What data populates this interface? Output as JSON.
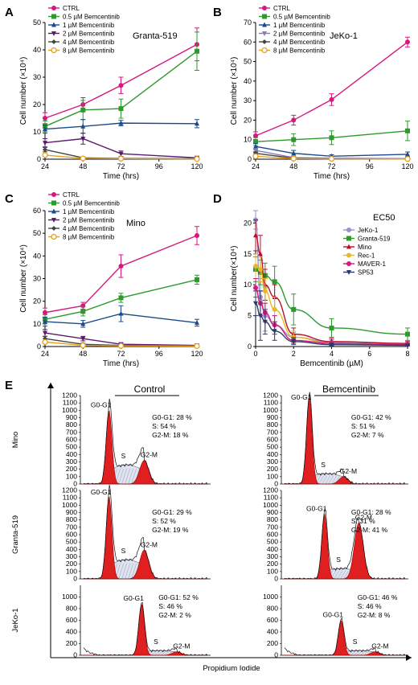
{
  "chart_data": [
    {
      "id": "A",
      "panel": "A",
      "type": "line",
      "annotation": "Granta-519",
      "xlabel": "Time (hrs)",
      "ylabel": "Cell number (×10⁴)",
      "x_ticks": [
        24,
        48,
        72,
        96,
        120
      ],
      "y_ticks": [
        0,
        10,
        20,
        30,
        40,
        50
      ],
      "xlim": [
        24,
        120
      ],
      "ylim": [
        0,
        50
      ],
      "legend_position": "top-left",
      "x": [
        24,
        48,
        72,
        120
      ],
      "series": [
        {
          "name": "CTRL",
          "color": "#d6187e",
          "marker": "circle",
          "y": [
            15,
            20,
            27,
            42
          ],
          "err": [
            2,
            2.5,
            3,
            6
          ]
        },
        {
          "name": "0.5 µM Bemcentinib",
          "color": "#2e9a2e",
          "marker": "square",
          "y": [
            12,
            18,
            18.5,
            39.5
          ],
          "err": [
            2,
            3.5,
            3.5,
            7
          ]
        },
        {
          "name": "1 µM Bemcentinib",
          "color": "#1a4a8a",
          "marker": "triangle",
          "y": [
            11,
            12,
            13.2,
            13
          ],
          "err": [
            1.5,
            2.5,
            1,
            1.5
          ]
        },
        {
          "name": "2 µM Bemcentinib",
          "color": "#5a1a6e",
          "marker": "triangle-down",
          "y": [
            6,
            7.5,
            2,
            0.5
          ],
          "err": [
            1.5,
            2,
            1,
            0.3
          ]
        },
        {
          "name": "4 µM Bemcentinib",
          "color": "#444444",
          "marker": "diamond",
          "y": [
            3.5,
            0.5,
            0.3,
            0.2
          ],
          "err": [
            0.8,
            0.3,
            0.2,
            0.1
          ]
        },
        {
          "name": "8 µM Bemcentinib",
          "color": "#e8a020",
          "marker": "circle-open",
          "y": [
            1.5,
            0.3,
            0.2,
            0.1
          ],
          "err": [
            0.5,
            0.2,
            0.1,
            0.1
          ]
        }
      ]
    },
    {
      "id": "B",
      "panel": "B",
      "type": "line",
      "annotation": "JeKo-1",
      "xlabel": "Time (hrs)",
      "ylabel": "Cell number (×10⁴)",
      "x_ticks": [
        24,
        48,
        72,
        96,
        120
      ],
      "y_ticks": [
        0,
        10,
        20,
        30,
        40,
        50,
        60,
        70
      ],
      "xlim": [
        24,
        120
      ],
      "ylim": [
        0,
        70
      ],
      "legend_position": "top-left",
      "x": [
        24,
        48,
        72,
        120
      ],
      "series": [
        {
          "name": "CTRL",
          "color": "#d6187e",
          "marker": "circle",
          "y": [
            12,
            20,
            30.5,
            60
          ],
          "err": [
            2,
            2.5,
            3,
            2.5
          ]
        },
        {
          "name": "0.5 µM Bemcentinib",
          "color": "#2e9a2e",
          "marker": "square",
          "y": [
            9,
            10,
            11,
            14.5
          ],
          "err": [
            2,
            3,
            3.5,
            5
          ]
        },
        {
          "name": "1 µM Bemcentinib",
          "color": "#1a4a8a",
          "marker": "triangle",
          "y": [
            6.5,
            3,
            1.5,
            2.5
          ],
          "err": [
            1.5,
            1.5,
            0.8,
            1.2
          ]
        },
        {
          "name": "2 µM Bemcentinib",
          "color": "#8a7ab8",
          "marker": "triangle-down",
          "y": [
            4.5,
            0.8,
            0.5,
            0.3
          ],
          "err": [
            1,
            0.5,
            0.3,
            0.2
          ]
        },
        {
          "name": "4 µM Bemcentinib",
          "color": "#444444",
          "marker": "diamond",
          "y": [
            3,
            0.5,
            0.3,
            0.2
          ],
          "err": [
            0.8,
            0.3,
            0.2,
            0.1
          ]
        },
        {
          "name": "8 µM Bemcentinib",
          "color": "#e8a020",
          "marker": "circle-open",
          "y": [
            1.5,
            0.3,
            0.2,
            0.1
          ],
          "err": [
            0.5,
            0.2,
            0.1,
            0.1
          ]
        }
      ]
    },
    {
      "id": "C",
      "panel": "C",
      "type": "line",
      "annotation": "Mino",
      "xlabel": "Time (hrs)",
      "ylabel": "Cell number (×10⁴)",
      "x_ticks": [
        24,
        48,
        72,
        96,
        120
      ],
      "y_ticks": [
        0,
        10,
        20,
        30,
        40,
        50,
        60
      ],
      "xlim": [
        24,
        120
      ],
      "ylim": [
        0,
        60
      ],
      "legend_position": "top-left",
      "x": [
        24,
        48,
        72,
        120
      ],
      "series": [
        {
          "name": "CTRL",
          "color": "#d6187e",
          "marker": "circle",
          "y": [
            15,
            18,
            35.5,
            49
          ],
          "err": [
            2,
            1.5,
            5,
            4
          ]
        },
        {
          "name": "0.5 µM Bemcentinib",
          "color": "#2e9a2e",
          "marker": "square",
          "y": [
            12,
            15.5,
            21.5,
            29.5
          ],
          "err": [
            2,
            2,
            2,
            2
          ]
        },
        {
          "name": "1 µM Bemcentinib",
          "color": "#1a4a8a",
          "marker": "triangle",
          "y": [
            11,
            10,
            14.5,
            10.5
          ],
          "err": [
            2,
            1.5,
            3.5,
            1.5
          ]
        },
        {
          "name": "2 µM Bemcentinib",
          "color": "#5a1a6e",
          "marker": "triangle-down",
          "y": [
            6,
            3.5,
            1,
            0.5
          ],
          "err": [
            1.5,
            1,
            0.5,
            0.3
          ]
        },
        {
          "name": "4 µM Bemcentinib",
          "color": "#444444",
          "marker": "diamond",
          "y": [
            3.5,
            1,
            0.5,
            0.3
          ],
          "err": [
            1,
            0.5,
            0.3,
            0.2
          ]
        },
        {
          "name": "8 µM Bemcentinib",
          "color": "#e8a020",
          "marker": "circle-open",
          "y": [
            2,
            0.5,
            0.3,
            0.2
          ],
          "err": [
            0.5,
            0.3,
            0.2,
            0.1
          ]
        }
      ]
    },
    {
      "id": "D",
      "panel": "D",
      "type": "line",
      "annotation": "EC50",
      "xlabel": "Bemcentinib (µM)",
      "ylabel": "Cell number(×10⁴)",
      "x_ticks": [
        0,
        2,
        4,
        6,
        8
      ],
      "y_ticks": [
        0,
        5,
        10,
        15,
        20
      ],
      "xlim": [
        0,
        8
      ],
      "ylim": [
        0,
        22
      ],
      "legend_position": "top-right",
      "x": [
        0,
        0.25,
        0.5,
        1,
        2,
        4,
        8
      ],
      "series": [
        {
          "name": "JeKo-1",
          "color": "#9a90cc",
          "marker": "circle",
          "y": [
            20.5,
            8,
            5,
            3.5,
            1.5,
            0.7,
            0.5
          ],
          "err": [
            1.5,
            3,
            2.5,
            1.5,
            0.8,
            0.4,
            0.3
          ]
        },
        {
          "name": "Granta-519",
          "color": "#2e9a2e",
          "marker": "square",
          "y": [
            12.5,
            12,
            11.5,
            10.5,
            6,
            3,
            2
          ],
          "err": [
            2,
            2,
            2,
            2.5,
            2.5,
            1.5,
            1
          ]
        },
        {
          "name": "Mino",
          "color": "#b8102a",
          "marker": "triangle",
          "y": [
            18,
            15,
            10,
            8,
            2,
            0.8,
            0.5
          ],
          "err": [
            2.5,
            3,
            2.5,
            2,
            1,
            0.5,
            0.3
          ]
        },
        {
          "name": "Rec-1",
          "color": "#e8b820",
          "marker": "circle",
          "y": [
            13,
            12.5,
            9,
            6,
            1.5,
            0.5,
            0.3
          ],
          "err": [
            2,
            2,
            2,
            2,
            1,
            0.3,
            0.2
          ]
        },
        {
          "name": "MAVER-1",
          "color": "#d6187e",
          "marker": "circle",
          "y": [
            9.5,
            7,
            5.5,
            3.5,
            1,
            0.5,
            0.3
          ],
          "err": [
            1.5,
            2,
            1.5,
            1.5,
            0.5,
            0.3,
            0.2
          ]
        },
        {
          "name": "SP53",
          "color": "#2a3a6a",
          "marker": "triangle-down",
          "y": [
            7,
            5,
            4,
            2.5,
            0.8,
            0.3,
            0.2
          ],
          "err": [
            2,
            4,
            2,
            1.5,
            0.5,
            0.2,
            0.1
          ]
        }
      ]
    },
    {
      "id": "E",
      "panel": "E",
      "type": "histogram",
      "xlabel": "Propidium Iodide",
      "y_ticks": [
        0,
        100,
        200,
        300,
        400,
        500,
        600,
        700,
        800,
        900,
        1000,
        1100,
        1200
      ],
      "columns": [
        "Control",
        "Bemcentinib"
      ],
      "rows": [
        "Mino",
        "Granta-519",
        "JeKo-1"
      ],
      "cells": [
        {
          "row": "Mino",
          "condition": "Control",
          "g0g1_label": "G0-G1",
          "g2m_label": "G2-M",
          "s_label": "S",
          "stats": [
            "G0-G1: 28 %",
            "S: 54 %",
            "G2-M: 18 %"
          ],
          "g0g1_peak": 1000,
          "g2m_peak": 320
        },
        {
          "row": "Mino",
          "condition": "Bemcentinib",
          "g0g1_label": "G0-G1",
          "g2m_label": "G2-M",
          "s_label": "S",
          "stats": [
            "G0-G1: 42 %",
            "S: 51 %",
            "G2-M: 7 %"
          ],
          "g0g1_peak": 1180,
          "g2m_peak": 100
        },
        {
          "row": "Granta-519",
          "condition": "Control",
          "g0g1_label": "G0-G1",
          "g2m_label": "G2-M",
          "s_label": "S",
          "stats": [
            "G0-G1: 29 %",
            "S: 52 %",
            "G2-M: 19 %"
          ],
          "g0g1_peak": 1120,
          "g2m_peak": 390
        },
        {
          "row": "Granta-519",
          "condition": "Bemcentinib",
          "g0g1_label": "G0-G1",
          "g2m_label": "G2-M",
          "s_label": "S",
          "stats": [
            "G0-G1: 28 %",
            "S: 31 %",
            "G2-M: 41 %"
          ],
          "g0g1_peak": 880,
          "g2m_peak": 760
        },
        {
          "row": "JeKo-1",
          "condition": "Control",
          "g0g1_label": "G0-G1",
          "g2m_label": "G2-M",
          "s_label": "S",
          "stats": [
            "G0-G1: 52 %",
            "S: 46 %",
            "G2-M: 2 %"
          ],
          "g0g1_peak": 880,
          "g2m_peak": 60
        },
        {
          "row": "JeKo-1",
          "condition": "Bemcentinib",
          "g0g1_label": "G0-G1",
          "g2m_label": "G2-M",
          "s_label": "S",
          "stats": [
            "G0-G1: 46 %",
            "S: 46 %",
            "G2-M: 8 %"
          ],
          "g0g1_peak": 600,
          "g2m_peak": 60
        }
      ]
    }
  ]
}
